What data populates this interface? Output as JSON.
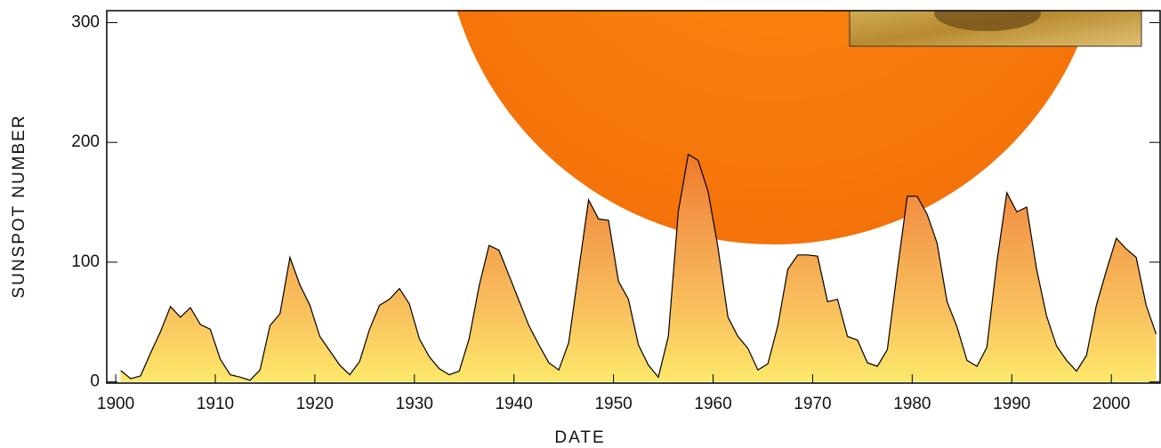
{
  "chart_data": {
    "type": "area",
    "xlabel": "DATE",
    "ylabel": "SUNSPOT NUMBER",
    "x": [
      1900.5,
      1901.5,
      1902.5,
      1903.5,
      1904.5,
      1905.5,
      1906.5,
      1907.5,
      1908.5,
      1909.5,
      1910.5,
      1911.5,
      1912.5,
      1913.5,
      1914.5,
      1915.5,
      1916.5,
      1917.5,
      1918.5,
      1919.5,
      1920.5,
      1921.5,
      1922.5,
      1923.5,
      1924.5,
      1925.5,
      1926.5,
      1927.5,
      1928.5,
      1929.5,
      1930.5,
      1931.5,
      1932.5,
      1933.5,
      1934.5,
      1935.5,
      1936.5,
      1937.5,
      1938.5,
      1939.5,
      1940.5,
      1941.5,
      1942.5,
      1943.5,
      1944.5,
      1945.5,
      1946.5,
      1947.5,
      1948.5,
      1949.5,
      1950.5,
      1951.5,
      1952.5,
      1953.5,
      1954.5,
      1955.5,
      1956.5,
      1957.5,
      1958.5,
      1959.5,
      1960.5,
      1961.5,
      1962.5,
      1963.5,
      1964.5,
      1965.5,
      1966.5,
      1967.5,
      1968.5,
      1969.5,
      1970.5,
      1971.5,
      1972.5,
      1973.5,
      1974.5,
      1975.5,
      1976.5,
      1977.5,
      1978.5,
      1979.5,
      1980.5,
      1981.5,
      1982.5,
      1983.5,
      1984.5,
      1985.5,
      1986.5,
      1987.5,
      1988.5,
      1989.5,
      1990.5,
      1991.5,
      1992.5,
      1993.5,
      1994.5,
      1995.5,
      1996.5,
      1997.5,
      1998.5,
      1999.5,
      2000.5,
      2001.5,
      2002.5,
      2003.5,
      2004.5
    ],
    "values": [
      9.5,
      2.7,
      5,
      24,
      42,
      63,
      54,
      62,
      48,
      44,
      19,
      6,
      4,
      1.4,
      10,
      47,
      57,
      104,
      81,
      64,
      38,
      26,
      14,
      6,
      17,
      44,
      64,
      69,
      78,
      65,
      36,
      21,
      11,
      6,
      9,
      36,
      80,
      114,
      110,
      89,
      68,
      47,
      31,
      16,
      10,
      33,
      93,
      152,
      136,
      135,
      84,
      69,
      31,
      14,
      4,
      38,
      142,
      190,
      185,
      159,
      112,
      54,
      38,
      28,
      10,
      15,
      47,
      94,
      106,
      106,
      105,
      67,
      69,
      38,
      35,
      16,
      13,
      27,
      93,
      155,
      155,
      140,
      116,
      67,
      46,
      18,
      13,
      29,
      100,
      158,
      142,
      146,
      94,
      55,
      30,
      18,
      9,
      22,
      64,
      93,
      120,
      111,
      104,
      64,
      40
    ],
    "color": "#000000",
    "xlim": [
      1899.1,
      2004.9
    ],
    "ylim": [
      -1,
      310
    ],
    "xticks": [
      1900,
      1910,
      1920,
      1930,
      1940,
      1950,
      1960,
      1970,
      1980,
      1990,
      2000
    ],
    "yticks": [
      0,
      100,
      200,
      300
    ]
  }
}
